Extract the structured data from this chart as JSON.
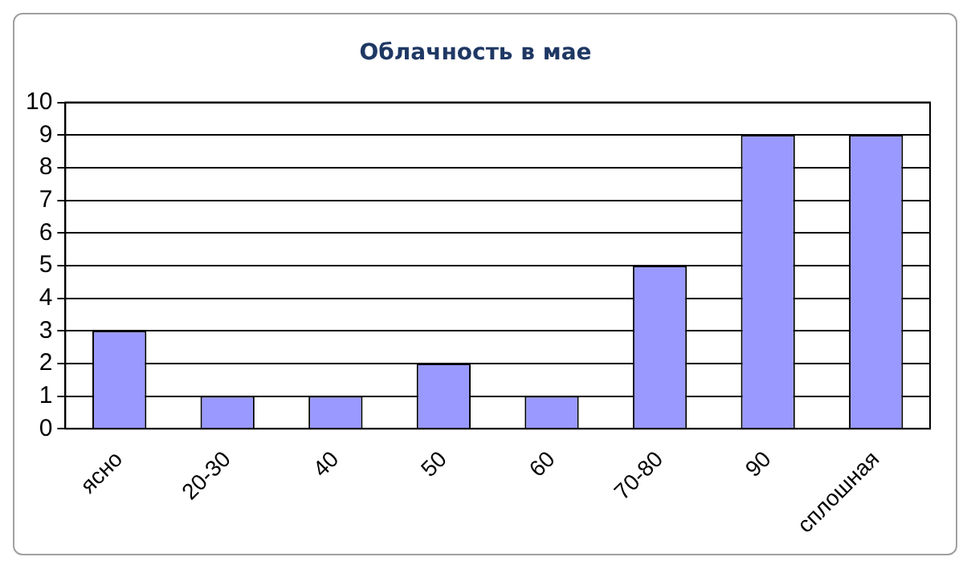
{
  "chart_data": {
    "type": "bar",
    "title": "Облачность в мае",
    "categories": [
      "ясно",
      "20-30",
      "40",
      "50",
      "60",
      "70-80",
      "90",
      "сплошная"
    ],
    "values": [
      3,
      1,
      1,
      2,
      1,
      5,
      9,
      9
    ],
    "color": "#9999ff",
    "ylim": [
      0,
      10
    ],
    "yticks": [
      0,
      1,
      2,
      3,
      4,
      5,
      6,
      7,
      8,
      9,
      10
    ],
    "grid": "y",
    "legend": false
  }
}
